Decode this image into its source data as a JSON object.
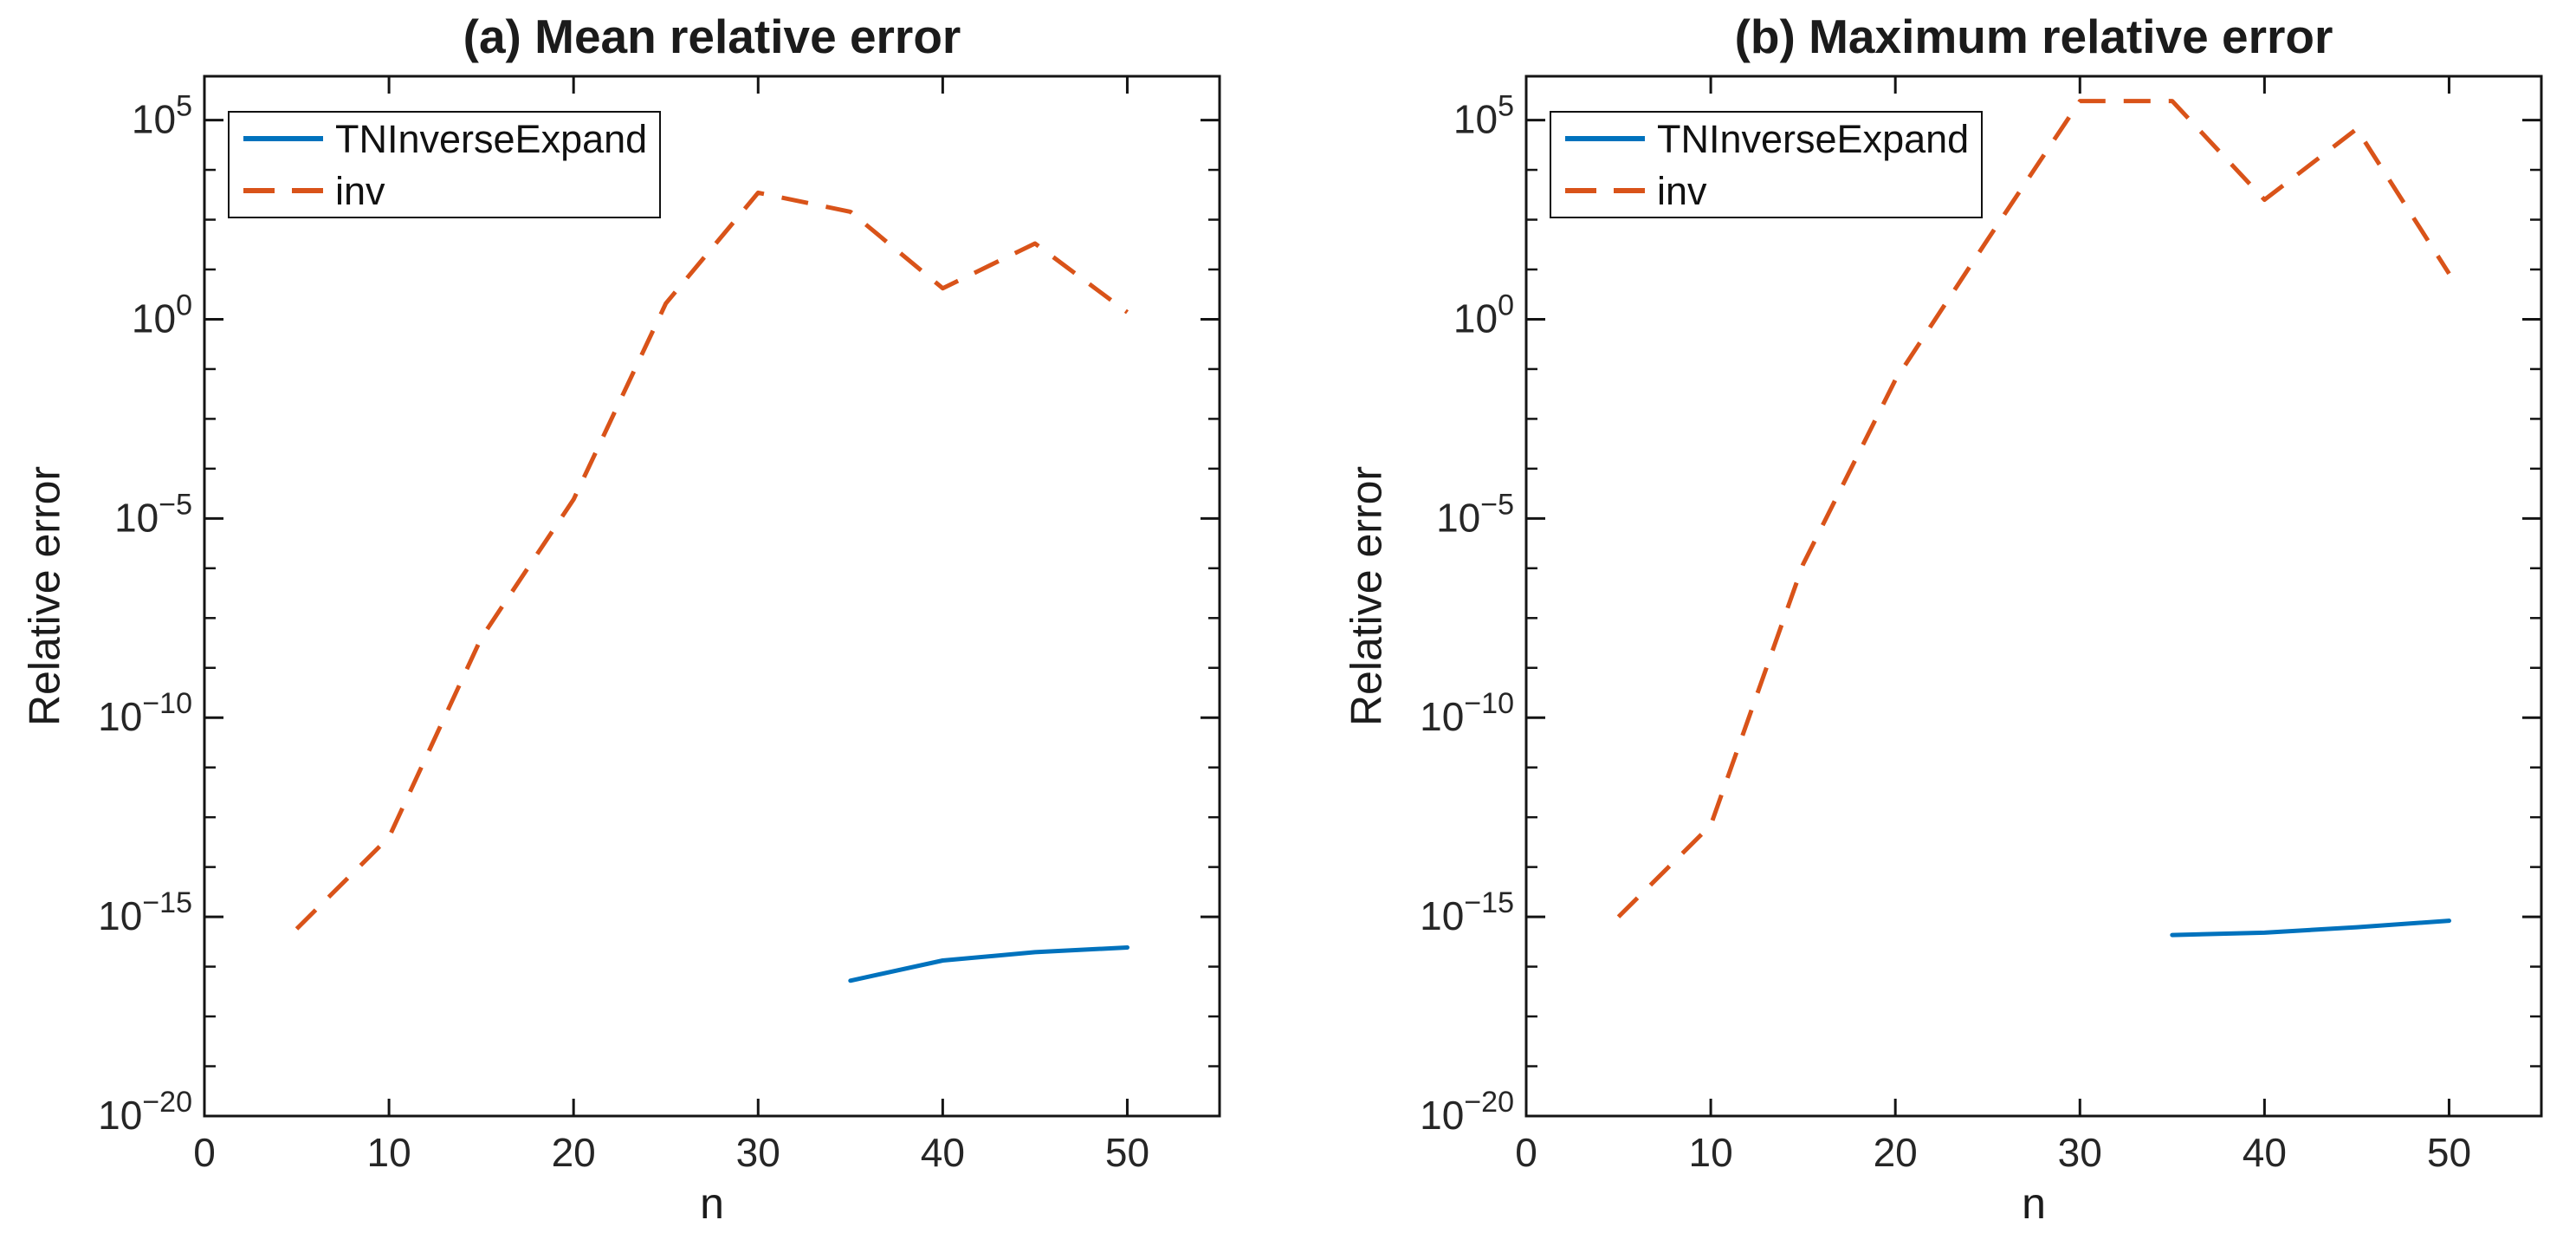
{
  "figure": {
    "background": "#ffffff"
  },
  "colors": {
    "series_blue": "#0072BD",
    "series_orange": "#D95319",
    "axis": "#141414",
    "tick_text": "#262626",
    "text": "#1b1b1b"
  },
  "chart_data": [
    {
      "type": "line",
      "title": "(a) Mean relative error",
      "xlabel": "n",
      "ylabel": "Relative error",
      "xlim": [
        0,
        55
      ],
      "ylim_exp": [
        -20,
        6.1
      ],
      "xticks": [
        0,
        10,
        20,
        30,
        40,
        50
      ],
      "ytick_exponents": [
        5,
        0,
        -5,
        -10,
        -15,
        -20
      ],
      "grid": false,
      "legend_position": "top-left",
      "series": [
        {
          "name": "TNInverseExpand",
          "style": "solid",
          "color_key": "series_blue",
          "x": [
            35,
            40,
            45,
            50
          ],
          "y": [
            2.5e-17,
            8e-17,
            1.3e-16,
            1.7e-16
          ]
        },
        {
          "name": "inv",
          "style": "dashed",
          "color_key": "series_orange",
          "x": [
            5,
            10,
            15,
            20,
            25,
            30,
            35,
            40,
            45,
            50
          ],
          "y": [
            5e-16,
            1e-13,
            1e-08,
            3e-05,
            2.5,
            1500,
            500,
            6,
            80,
            1.5
          ]
        }
      ]
    },
    {
      "type": "line",
      "title": "(b) Maximum relative error",
      "xlabel": "n",
      "ylabel": "Relative error",
      "xlim": [
        0,
        55
      ],
      "ylim_exp": [
        -20,
        6.1
      ],
      "xticks": [
        0,
        10,
        20,
        30,
        40,
        50
      ],
      "ytick_exponents": [
        5,
        0,
        -5,
        -10,
        -15,
        -20
      ],
      "grid": false,
      "legend_position": "top-left",
      "series": [
        {
          "name": "TNInverseExpand",
          "style": "solid",
          "color_key": "series_blue",
          "x": [
            35,
            40,
            45,
            50
          ],
          "y": [
            3.5e-16,
            4e-16,
            5.5e-16,
            8e-16
          ]
        },
        {
          "name": "inv",
          "style": "dashed",
          "color_key": "series_orange",
          "x": [
            5,
            10,
            15,
            20,
            25,
            30,
            35,
            40,
            45,
            50
          ],
          "y": [
            1e-15,
            2e-13,
            7e-07,
            0.03,
            100,
            300000.0,
            300000.0,
            1000,
            60000.0,
            14
          ]
        }
      ]
    }
  ]
}
